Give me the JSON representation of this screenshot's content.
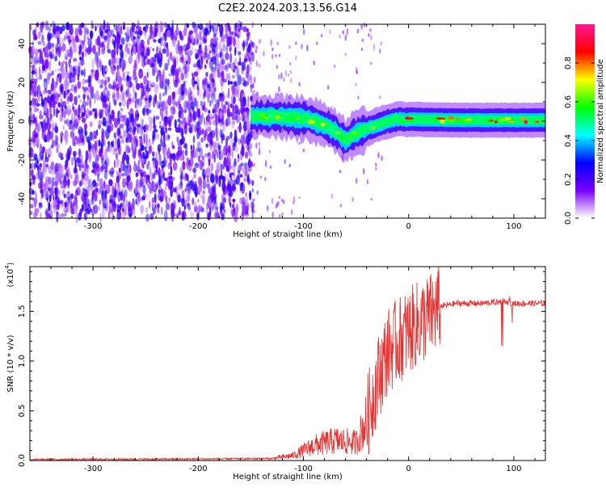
{
  "figure": {
    "title": "C2E2.2024.203.13.56.G14"
  },
  "chart_data": [
    {
      "type": "heatmap",
      "xlabel": "Height of straight line (km)",
      "ylabel": "Frequency (Hz)",
      "xlim": [
        -360,
        130
      ],
      "ylim": [
        -50,
        50
      ],
      "xticks": [
        -300,
        -200,
        -100,
        0,
        100
      ],
      "yticks": [
        -40,
        -20,
        0,
        20,
        40
      ],
      "noise_region_x": [
        -360,
        -148
      ],
      "signal_track": [
        {
          "x": -150,
          "y": 2.5
        },
        {
          "x": -130,
          "y": 2.5
        },
        {
          "x": -110,
          "y": 2
        },
        {
          "x": -95,
          "y": 1
        },
        {
          "x": -80,
          "y": -2
        },
        {
          "x": -70,
          "y": -5
        },
        {
          "x": -60,
          "y": -10
        },
        {
          "x": -50,
          "y": -6
        },
        {
          "x": -40,
          "y": -4
        },
        {
          "x": -30,
          "y": -2
        },
        {
          "x": -20,
          "y": 0
        },
        {
          "x": -10,
          "y": 1
        },
        {
          "x": 0,
          "y": 1
        },
        {
          "x": 50,
          "y": 0.5
        },
        {
          "x": 100,
          "y": 0.5
        },
        {
          "x": 130,
          "y": 0.5
        }
      ],
      "colorbar": {
        "label": "Normalized spectral amplitude",
        "range": [
          0,
          1
        ],
        "ticks": [
          0.0,
          0.2,
          0.4,
          0.6,
          0.8
        ],
        "tick_labels": [
          "0.0",
          "0.2",
          "0.4",
          "0.6",
          "0.8"
        ],
        "colors": [
          "#ffffff",
          "#7b00ff",
          "#0000ff",
          "#00ffff",
          "#00ff00",
          "#ffff00",
          "#ff0000",
          "#ff1493"
        ]
      }
    },
    {
      "type": "line",
      "xlabel": "Height of straight line (km)",
      "ylabel": "SNR (10 * v/v)",
      "y_multiplier": "(x10",
      "y_multiplier_exp": "4",
      "y_multiplier_close": ")",
      "xlim": [
        -360,
        130
      ],
      "ylim": [
        0,
        1.95
      ],
      "xticks": [
        -300,
        -200,
        -100,
        0,
        100
      ],
      "yticks": [
        0.0,
        0.5,
        1.0,
        1.5
      ],
      "ytick_labels": [
        "0.0",
        "0.5",
        "1.0",
        "1.5"
      ],
      "color": "#e83030",
      "envelope": [
        {
          "x": -360,
          "y": 0.01
        },
        {
          "x": -200,
          "y": 0.015
        },
        {
          "x": -130,
          "y": 0.02
        },
        {
          "x": -110,
          "y": 0.05
        },
        {
          "x": -90,
          "y": 0.15
        },
        {
          "x": -70,
          "y": 0.2
        },
        {
          "x": -50,
          "y": 0.18
        },
        {
          "x": -40,
          "y": 0.4
        },
        {
          "x": -30,
          "y": 0.8
        },
        {
          "x": -20,
          "y": 1.1
        },
        {
          "x": -10,
          "y": 1.2
        },
        {
          "x": 0,
          "y": 1.3
        },
        {
          "x": 10,
          "y": 1.38
        },
        {
          "x": 20,
          "y": 1.45
        },
        {
          "x": 30,
          "y": 1.55
        },
        {
          "x": 45,
          "y": 1.58
        },
        {
          "x": 70,
          "y": 1.58
        },
        {
          "x": 90,
          "y": 1.6
        },
        {
          "x": 100,
          "y": 1.58
        },
        {
          "x": 130,
          "y": 1.58
        }
      ]
    }
  ]
}
